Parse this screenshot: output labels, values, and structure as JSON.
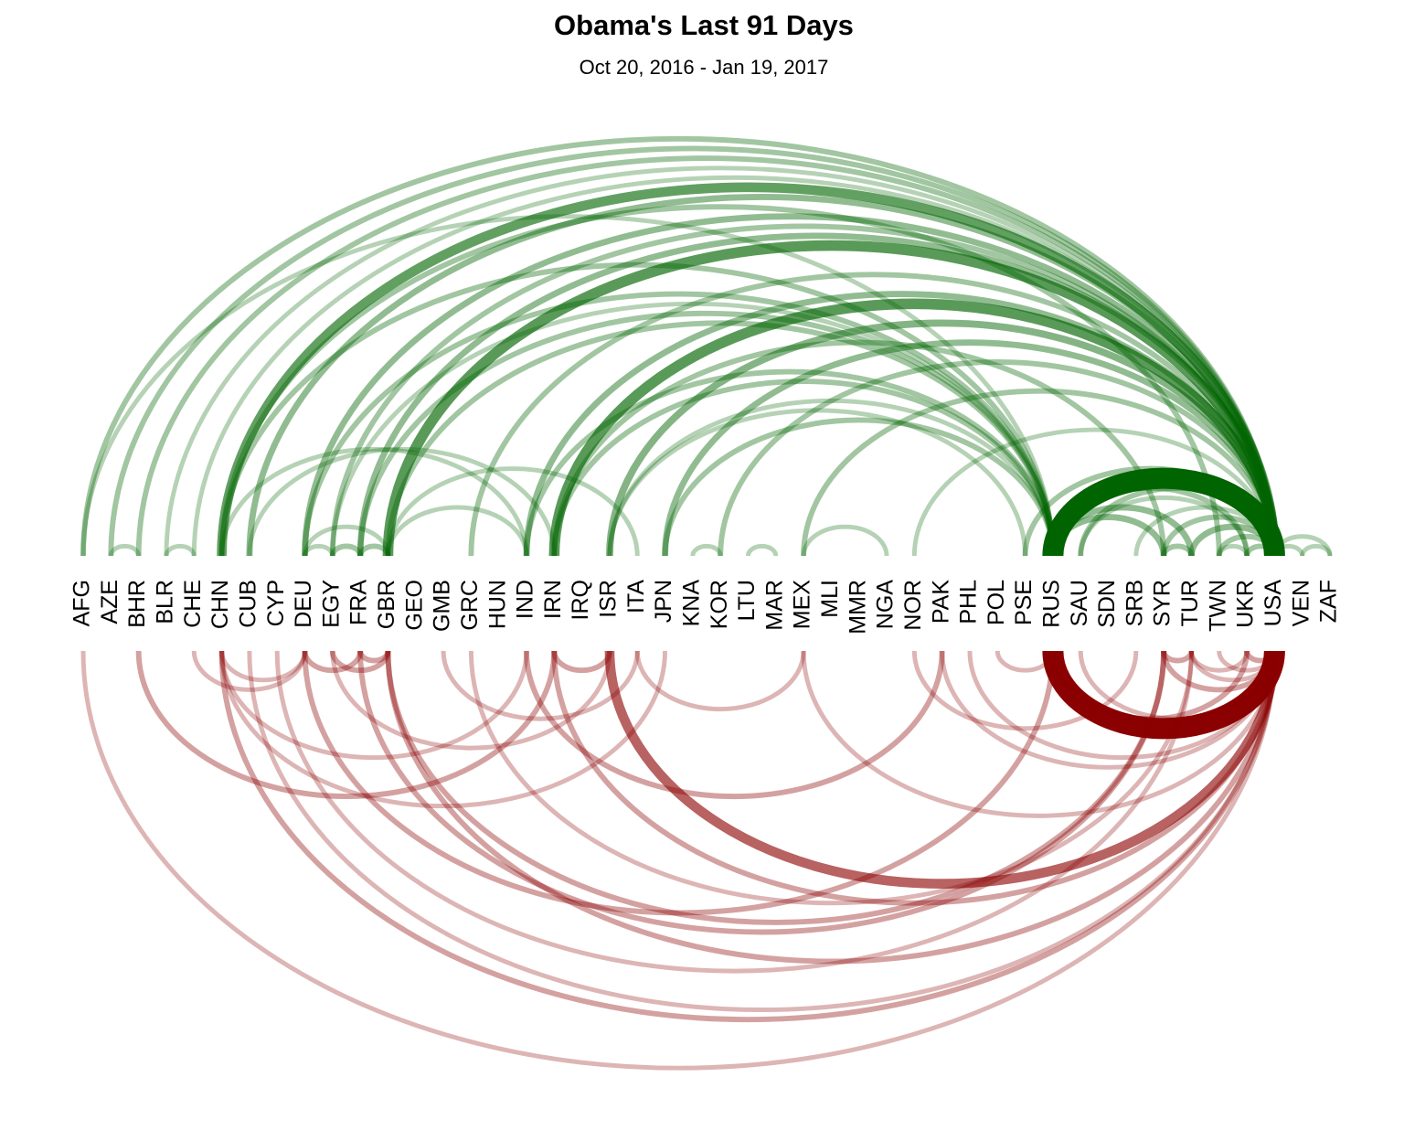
{
  "chart_data": {
    "type": "arc",
    "title": "Obama's Last 91 Days",
    "subtitle": "Oct 20, 2016 - Jan 19, 2017",
    "nodes": [
      "AFG",
      "AZE",
      "BHR",
      "BLR",
      "CHE",
      "CHN",
      "CUB",
      "CYP",
      "DEU",
      "EGY",
      "FRA",
      "GBR",
      "GEO",
      "GMB",
      "GRC",
      "HUN",
      "IND",
      "IRN",
      "IRQ",
      "ISR",
      "ITA",
      "JPN",
      "KNA",
      "KOR",
      "LTU",
      "MAR",
      "MEX",
      "MLI",
      "MMR",
      "NGA",
      "NOR",
      "PAK",
      "PHL",
      "POL",
      "PSE",
      "RUS",
      "SAU",
      "SDN",
      "SRB",
      "SYR",
      "TUR",
      "TWN",
      "UKR",
      "USA",
      "VEN",
      "ZAF"
    ],
    "top_color": "#006400",
    "bottom_color": "#8b0000",
    "top_links": [
      {
        "source": "RUS",
        "target": "USA",
        "weight": 20
      },
      {
        "source": "CHN",
        "target": "USA",
        "weight": 7
      },
      {
        "source": "GBR",
        "target": "USA",
        "weight": 8
      },
      {
        "source": "IRN",
        "target": "USA",
        "weight": 8
      },
      {
        "source": "ISR",
        "target": "USA",
        "weight": 4
      },
      {
        "source": "IND",
        "target": "USA",
        "weight": 3
      },
      {
        "source": "DEU",
        "target": "USA",
        "weight": 3
      },
      {
        "source": "FRA",
        "target": "USA",
        "weight": 3
      },
      {
        "source": "AFG",
        "target": "USA",
        "weight": 2
      },
      {
        "source": "AZE",
        "target": "USA",
        "weight": 2
      },
      {
        "source": "BHR",
        "target": "USA",
        "weight": 2
      },
      {
        "source": "BLR",
        "target": "USA",
        "weight": 1
      },
      {
        "source": "CUB",
        "target": "USA",
        "weight": 3
      },
      {
        "source": "JPN",
        "target": "USA",
        "weight": 3
      },
      {
        "source": "SYR",
        "target": "USA",
        "weight": 2
      },
      {
        "source": "TUR",
        "target": "USA",
        "weight": 3
      },
      {
        "source": "UKR",
        "target": "USA",
        "weight": 2
      },
      {
        "source": "MEX",
        "target": "USA",
        "weight": 2
      },
      {
        "source": "GRC",
        "target": "USA",
        "weight": 2
      },
      {
        "source": "EGY",
        "target": "USA",
        "weight": 2
      },
      {
        "source": "KOR",
        "target": "USA",
        "weight": 2
      },
      {
        "source": "SAU",
        "target": "USA",
        "weight": 2
      },
      {
        "source": "TWN",
        "target": "USA",
        "weight": 2
      },
      {
        "source": "PSE",
        "target": "USA",
        "weight": 2
      },
      {
        "source": "SRB",
        "target": "USA",
        "weight": 1
      },
      {
        "source": "USA",
        "target": "VEN",
        "weight": 1
      },
      {
        "source": "USA",
        "target": "ZAF",
        "weight": 1
      },
      {
        "source": "NOR",
        "target": "USA",
        "weight": 1
      },
      {
        "source": "CHE",
        "target": "USA",
        "weight": 1
      },
      {
        "source": "CHN",
        "target": "RUS",
        "weight": 2
      },
      {
        "source": "RUS",
        "target": "TUR",
        "weight": 3
      },
      {
        "source": "RUS",
        "target": "SYR",
        "weight": 3
      },
      {
        "source": "GBR",
        "target": "RUS",
        "weight": 2
      },
      {
        "source": "DEU",
        "target": "RUS",
        "weight": 2
      },
      {
        "source": "FRA",
        "target": "RUS",
        "weight": 2
      },
      {
        "source": "IRN",
        "target": "RUS",
        "weight": 2
      },
      {
        "source": "ISR",
        "target": "RUS",
        "weight": 1
      },
      {
        "source": "JPN",
        "target": "RUS",
        "weight": 2
      },
      {
        "source": "RUS",
        "target": "UKR",
        "weight": 2
      },
      {
        "source": "AFG",
        "target": "RUS",
        "weight": 1
      },
      {
        "source": "EGY",
        "target": "RUS",
        "weight": 1
      },
      {
        "source": "IND",
        "target": "RUS",
        "weight": 2
      },
      {
        "source": "AZE",
        "target": "BHR",
        "weight": 1
      },
      {
        "source": "BLR",
        "target": "CHE",
        "weight": 1
      },
      {
        "source": "DEU",
        "target": "EGY",
        "weight": 1
      },
      {
        "source": "EGY",
        "target": "FRA",
        "weight": 2
      },
      {
        "source": "FRA",
        "target": "GBR",
        "weight": 2
      },
      {
        "source": "CHN",
        "target": "TWN",
        "weight": 2
      },
      {
        "source": "CHN",
        "target": "IND",
        "weight": 1
      },
      {
        "source": "KNA",
        "target": "KOR",
        "weight": 1
      },
      {
        "source": "LTU",
        "target": "MAR",
        "weight": 1
      },
      {
        "source": "MEX",
        "target": "NGA",
        "weight": 1
      },
      {
        "source": "GBR",
        "target": "IND",
        "weight": 1
      },
      {
        "source": "IRN",
        "target": "SYR",
        "weight": 2
      },
      {
        "source": "ISR",
        "target": "PSE",
        "weight": 1
      },
      {
        "source": "SYR",
        "target": "TUR",
        "weight": 2
      },
      {
        "source": "SAU",
        "target": "UKR",
        "weight": 1
      },
      {
        "source": "VEN",
        "target": "ZAF",
        "weight": 1
      },
      {
        "source": "TWN",
        "target": "UKR",
        "weight": 1
      },
      {
        "source": "DEU",
        "target": "GBR",
        "weight": 1
      },
      {
        "source": "CUB",
        "target": "IRN",
        "weight": 1
      },
      {
        "source": "GBR",
        "target": "ITA",
        "weight": 1
      }
    ],
    "bottom_links": [
      {
        "source": "RUS",
        "target": "USA",
        "weight": 20
      },
      {
        "source": "ISR",
        "target": "USA",
        "weight": 7
      },
      {
        "source": "AFG",
        "target": "USA",
        "weight": 1
      },
      {
        "source": "BHR",
        "target": "IRN",
        "weight": 2
      },
      {
        "source": "CHN",
        "target": "DEU",
        "weight": 1
      },
      {
        "source": "CHE",
        "target": "DEU",
        "weight": 1
      },
      {
        "source": "CHN",
        "target": "IND",
        "weight": 1
      },
      {
        "source": "DEU",
        "target": "FRA",
        "weight": 2
      },
      {
        "source": "EGY",
        "target": "GBR",
        "weight": 2
      },
      {
        "source": "FRA",
        "target": "GBR",
        "weight": 2
      },
      {
        "source": "GBR",
        "target": "SYR",
        "weight": 2
      },
      {
        "source": "GBR",
        "target": "USA",
        "weight": 2
      },
      {
        "source": "GMB",
        "target": "ITA",
        "weight": 1
      },
      {
        "source": "IND",
        "target": "PAK",
        "weight": 2
      },
      {
        "source": "IRN",
        "target": "ISR",
        "weight": 2
      },
      {
        "source": "IRN",
        "target": "USA",
        "weight": 2
      },
      {
        "source": "GRC",
        "target": "TUR",
        "weight": 1
      },
      {
        "source": "DEU",
        "target": "RUS",
        "weight": 2
      },
      {
        "source": "FRA",
        "target": "SYR",
        "weight": 2
      },
      {
        "source": "EGY",
        "target": "ISR",
        "weight": 1
      },
      {
        "source": "CHN",
        "target": "JPN",
        "weight": 1
      },
      {
        "source": "CHN",
        "target": "USA",
        "weight": 2
      },
      {
        "source": "CYP",
        "target": "TUR",
        "weight": 1
      },
      {
        "source": "PAK",
        "target": "USA",
        "weight": 1
      },
      {
        "source": "SYR",
        "target": "TUR",
        "weight": 2
      },
      {
        "source": "TUR",
        "target": "UKR",
        "weight": 1
      },
      {
        "source": "RUS",
        "target": "UKR",
        "weight": 2
      },
      {
        "source": "SYR",
        "target": "USA",
        "weight": 2
      },
      {
        "source": "MEX",
        "target": "USA",
        "weight": 1
      },
      {
        "source": "PHL",
        "target": "USA",
        "weight": 1
      },
      {
        "source": "NOR",
        "target": "SRB",
        "weight": 1
      },
      {
        "source": "POL",
        "target": "RUS",
        "weight": 1
      },
      {
        "source": "SAU",
        "target": "USA",
        "weight": 1
      },
      {
        "source": "TUR",
        "target": "USA",
        "weight": 1
      },
      {
        "source": "TWN",
        "target": "USA",
        "weight": 1
      },
      {
        "source": "UKR",
        "target": "USA",
        "weight": 2
      },
      {
        "source": "CUB",
        "target": "USA",
        "weight": 1
      },
      {
        "source": "ITA",
        "target": "MEX",
        "weight": 1
      }
    ]
  }
}
